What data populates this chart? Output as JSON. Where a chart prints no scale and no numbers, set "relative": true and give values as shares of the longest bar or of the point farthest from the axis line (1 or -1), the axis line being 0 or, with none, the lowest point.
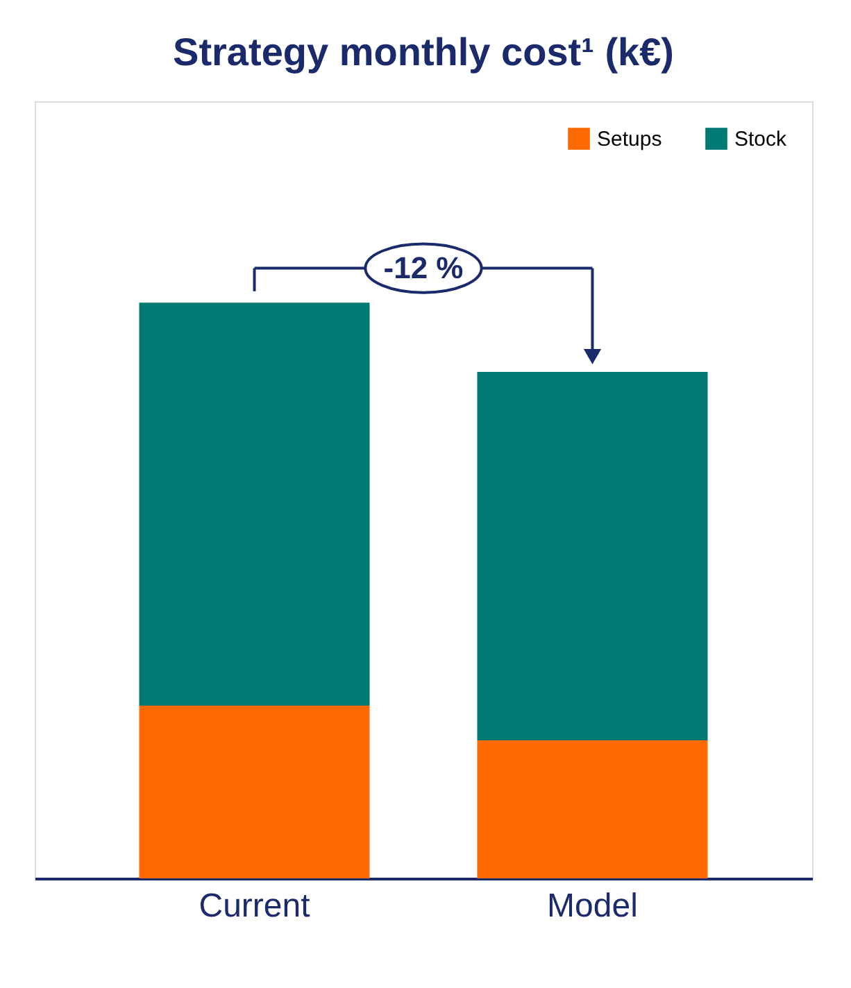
{
  "chart_data": {
    "type": "bar",
    "title": "Strategy monthly cost¹ (k€)",
    "categories": [
      "Current",
      "Model"
    ],
    "stacked": true,
    "relative": true,
    "legend": "top right",
    "series": [
      {
        "name": "Setups",
        "color": "#ff6a00",
        "values": [
          0.3,
          0.24
        ]
      },
      {
        "name": "Stock",
        "color": "#007a73",
        "values": [
          0.7,
          0.64
        ]
      }
    ],
    "annotations": [
      "-12 %"
    ]
  }
}
